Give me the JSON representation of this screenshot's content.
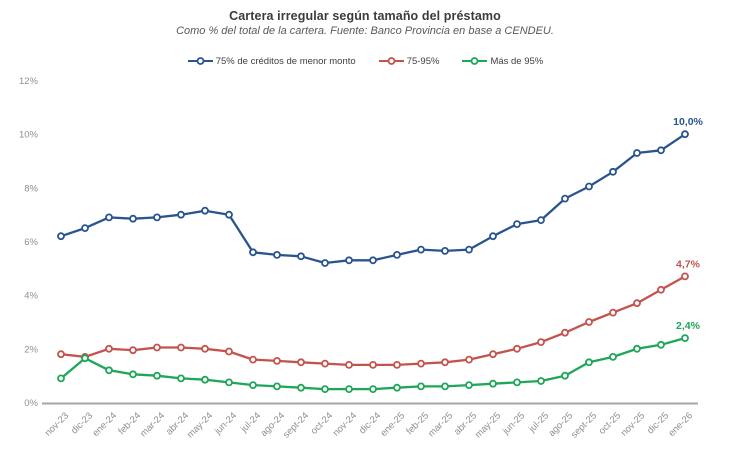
{
  "title": "Cartera irregular según tamaño del préstamo",
  "subtitle": "Como % del total de la cartera. Fuente: Banco Provincia en base a CENDEU.",
  "colors": {
    "background": "#ffffff",
    "title_text": "#3b3b3b",
    "subtitle_text": "#595959",
    "legend_text": "#404040",
    "tick_text": "#8f8f8f",
    "axis_line": "#a6a6a6",
    "series_blue": "#2a5490",
    "series_red": "#c4534e",
    "series_green": "#1ea659"
  },
  "chart_data": {
    "type": "line",
    "title": "Cartera irregular según tamaño del préstamo",
    "subtitle": "Como % del total de la cartera. Fuente: Banco Provincia en base a CENDEU.",
    "legend_position": "top",
    "grid": false,
    "ylim": [
      0,
      12
    ],
    "yticks": [
      0,
      2,
      4,
      6,
      8,
      10,
      12
    ],
    "ytick_labels": [
      "0%",
      "2%",
      "4%",
      "6%",
      "8%",
      "10%",
      "12%"
    ],
    "categories": [
      "nov-23",
      "dic-23",
      "ene-24",
      "feb-24",
      "mar-24",
      "abr-24",
      "may-24",
      "jun-24",
      "jul-24",
      "ago-24",
      "sept-24",
      "oct-24",
      "nov-24",
      "dic-24",
      "ene-25",
      "feb-25",
      "mar-25",
      "abr-25",
      "may-25",
      "jun-25",
      "jul-25",
      "ago-25",
      "sept-25",
      "oct-25",
      "nov-25",
      "dic-25",
      "ene-26"
    ],
    "series": [
      {
        "name": "75% de créditos de menor monto",
        "color": "#2a5490",
        "end_label": "10,0%",
        "values": [
          6.2,
          6.5,
          6.9,
          6.85,
          6.9,
          7.0,
          7.15,
          7.0,
          5.6,
          5.5,
          5.45,
          5.2,
          5.3,
          5.3,
          5.5,
          5.7,
          5.65,
          5.7,
          6.2,
          6.65,
          6.8,
          7.6,
          8.05,
          8.6,
          9.3,
          9.4,
          10.0
        ]
      },
      {
        "name": "75-95%",
        "color": "#c4534e",
        "end_label": "4,7%",
        "values": [
          1.8,
          1.7,
          2.0,
          1.95,
          2.05,
          2.05,
          2.0,
          1.9,
          1.6,
          1.55,
          1.5,
          1.45,
          1.4,
          1.4,
          1.4,
          1.45,
          1.5,
          1.6,
          1.8,
          2.0,
          2.25,
          2.6,
          3.0,
          3.35,
          3.7,
          4.2,
          4.7
        ]
      },
      {
        "name": "Más de 95%",
        "color": "#1ea659",
        "end_label": "2,4%",
        "values": [
          0.9,
          1.65,
          1.2,
          1.05,
          1.0,
          0.9,
          0.85,
          0.75,
          0.65,
          0.6,
          0.55,
          0.5,
          0.5,
          0.5,
          0.55,
          0.6,
          0.6,
          0.65,
          0.7,
          0.75,
          0.8,
          1.0,
          1.5,
          1.7,
          2.0,
          2.15,
          2.4
        ]
      }
    ]
  }
}
